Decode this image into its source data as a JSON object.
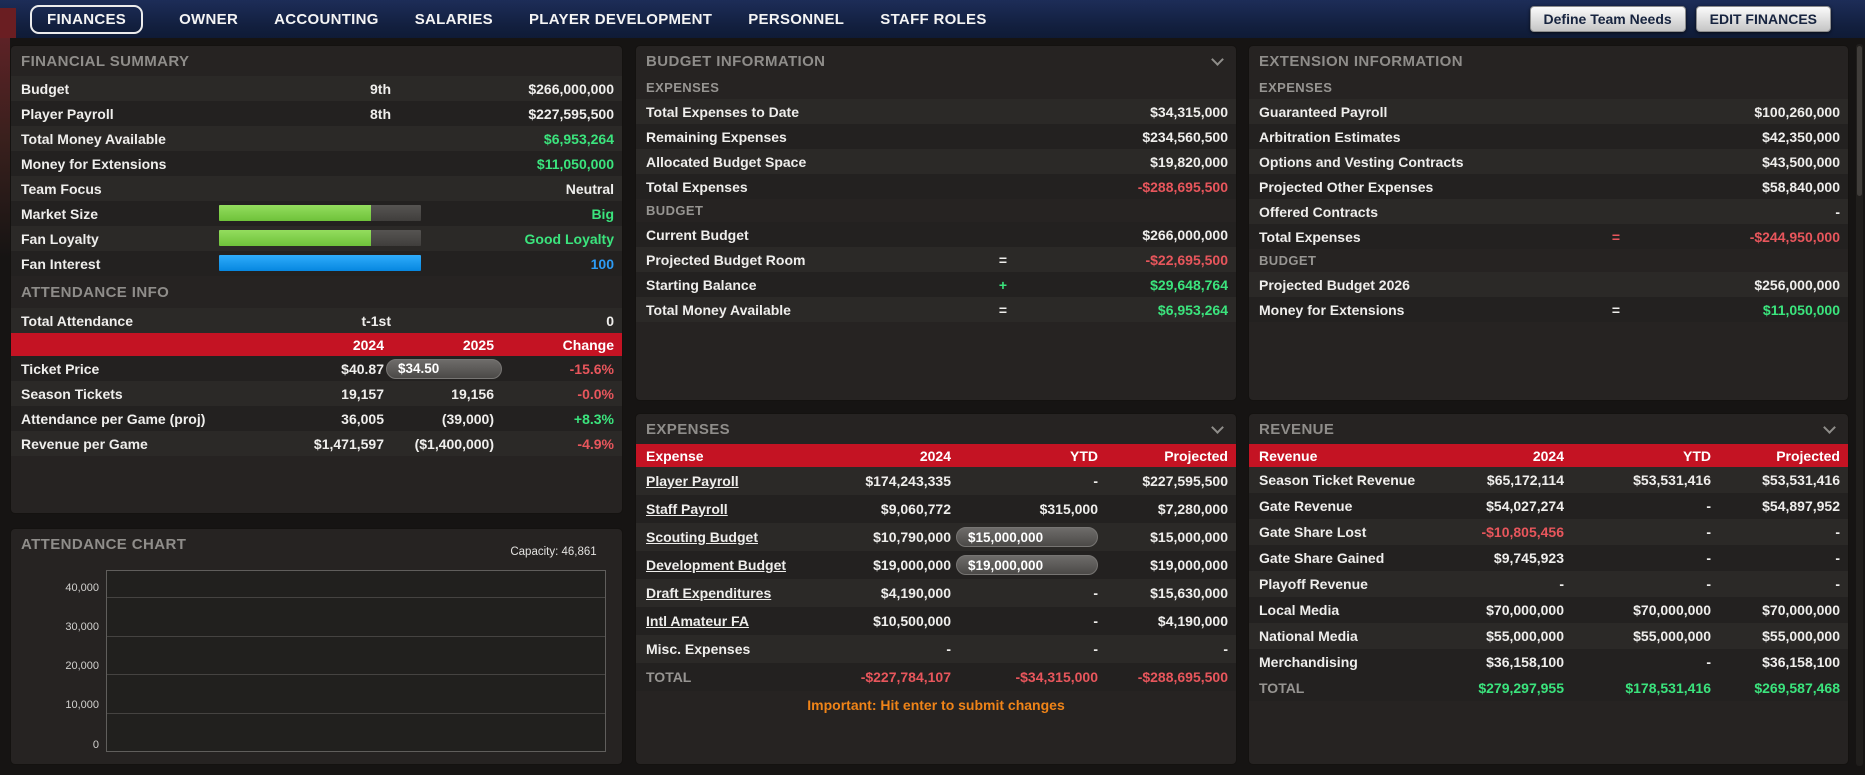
{
  "colors": {
    "accent_red": "#c41323",
    "positive_green": "#3be47d",
    "negative_red": "#e8565c",
    "info_blue": "#2d9bf5",
    "warning_orange": "#f08418",
    "bar_green": "#82d24b",
    "bar_blue": "#0d9cfa"
  },
  "nav": {
    "tabs": [
      {
        "label": "FINANCES",
        "selected": true
      },
      {
        "label": "OWNER",
        "selected": false
      },
      {
        "label": "ACCOUNTING",
        "selected": false
      },
      {
        "label": "SALARIES",
        "selected": false
      },
      {
        "label": "PLAYER DEVELOPMENT",
        "selected": false
      },
      {
        "label": "PERSONNEL",
        "selected": false
      },
      {
        "label": "STAFF ROLES",
        "selected": false
      }
    ],
    "buttons": [
      {
        "label": "Define Team Needs"
      },
      {
        "label": "EDIT FINANCES"
      }
    ]
  },
  "financial_summary": {
    "title": "FINANCIAL SUMMARY",
    "rows": [
      {
        "label": "Budget",
        "rank": "9th",
        "value": "$266,000,000"
      },
      {
        "label": "Player Payroll",
        "rank": "8th",
        "value": "$227,595,500"
      },
      {
        "label": "Total Money Available",
        "rank": "",
        "value": "$6,953,264"
      },
      {
        "label": "Money for Extensions",
        "rank": "",
        "value": "$11,050,000"
      },
      {
        "label": "Team Focus",
        "rank": "",
        "value": "Neutral"
      },
      {
        "label": "Market Size",
        "bar_pct": 75,
        "value": "Big"
      },
      {
        "label": "Fan Loyalty",
        "bar_pct": 75,
        "value": "Good Loyalty"
      },
      {
        "label": "Fan Interest",
        "bar_pct": 100,
        "value": "100"
      }
    ]
  },
  "attendance_info": {
    "title": "ATTENDANCE INFO",
    "total_row": {
      "label": "Total Attendance",
      "rank": "t-1st",
      "value": "0"
    },
    "columns": {
      "c1": "2024",
      "c2": "2025",
      "c3": "Change"
    },
    "rows": [
      {
        "label": "Ticket Price",
        "y2024": "$40.87",
        "y2025": "$34.50",
        "change": "-15.6%"
      },
      {
        "label": "Season Tickets",
        "y2024": "19,157",
        "y2025": "19,156",
        "change": "-0.0%"
      },
      {
        "label": "Attendance per Game (proj)",
        "y2024": "36,005",
        "y2025": "(39,000)",
        "change": "+8.3%"
      },
      {
        "label": "Revenue per Game",
        "y2024": "$1,471,597",
        "y2025": "($1,400,000)",
        "change": "-4.9%"
      }
    ]
  },
  "attendance_chart": {
    "title": "ATTENDANCE CHART",
    "capacity_label": "Capacity: 46,861",
    "chart_data": {
      "type": "line",
      "title": "ATTENDANCE CHART",
      "xlabel": "",
      "ylabel": "",
      "ylim": [
        0,
        46861
      ],
      "yticks": [
        "0",
        "10,000",
        "20,000",
        "30,000",
        "40,000"
      ],
      "capacity": 46861,
      "series": [],
      "grid": "horizontal",
      "note": "chart area empty - no attendance data plotted yet"
    }
  },
  "budget_information": {
    "title": "BUDGET INFORMATION",
    "expenses_subheader": "EXPENSES",
    "budget_subheader": "BUDGET",
    "expenses_rows": [
      {
        "label": "Total Expenses to Date",
        "op": "",
        "value": "$34,315,000"
      },
      {
        "label": "Remaining Expenses",
        "op": "",
        "value": "$234,560,500"
      },
      {
        "label": "Allocated Budget Space",
        "op": "",
        "value": "$19,820,000"
      },
      {
        "label": "Total Expenses",
        "op": "",
        "value": "-$288,695,500"
      }
    ],
    "budget_rows": [
      {
        "label": "Current Budget",
        "op": "",
        "value": "$266,000,000"
      },
      {
        "label": "Projected Budget Room",
        "op": "=",
        "value": "-$22,695,500"
      },
      {
        "label": "Starting Balance",
        "op": "+",
        "value": "$29,648,764"
      },
      {
        "label": "Total Money Available",
        "op": "=",
        "value": "$6,953,264"
      }
    ]
  },
  "expenses_table": {
    "title": "EXPENSES",
    "columns": [
      "Expense",
      "2024",
      "YTD",
      "Projected"
    ],
    "rows": [
      {
        "label": "Player Payroll",
        "y2024": "$174,243,335",
        "ytd": "-",
        "projected": "$227,595,500"
      },
      {
        "label": "Staff Payroll",
        "y2024": "$9,060,772",
        "ytd": "$315,000",
        "projected": "$7,280,000"
      },
      {
        "label": "Scouting Budget",
        "y2024": "$10,790,000",
        "ytd_input": "$15,000,000",
        "projected": "$15,000,000"
      },
      {
        "label": "Development Budget",
        "y2024": "$19,000,000",
        "ytd_input": "$19,000,000",
        "projected": "$19,000,000"
      },
      {
        "label": "Draft Expenditures",
        "y2024": "$4,190,000",
        "ytd": "-",
        "projected": "$15,630,000"
      },
      {
        "label": "Intl Amateur FA",
        "y2024": "$10,500,000",
        "ytd": "-",
        "projected": "$4,190,000"
      },
      {
        "label": "Misc. Expenses",
        "y2024": "-",
        "ytd": "-",
        "projected": "-"
      }
    ],
    "total_row": {
      "label": "TOTAL",
      "y2024": "-$227,784,107",
      "ytd": "-$34,315,000",
      "projected": "-$288,695,500"
    },
    "note": "Important: Hit enter to submit changes"
  },
  "extension_information": {
    "title": "EXTENSION INFORMATION",
    "expenses_subheader": "EXPENSES",
    "budget_subheader": "BUDGET",
    "expenses_rows": [
      {
        "label": "Guaranteed Payroll",
        "op": "",
        "value": "$100,260,000"
      },
      {
        "label": "Arbitration Estimates",
        "op": "",
        "value": "$42,350,000"
      },
      {
        "label": "Options and Vesting Contracts",
        "op": "",
        "value": "$43,500,000"
      },
      {
        "label": "Projected Other Expenses",
        "op": "",
        "value": "$58,840,000"
      },
      {
        "label": "Offered Contracts",
        "op": "",
        "value": "-"
      },
      {
        "label": "Total Expenses",
        "op": "=",
        "value": "-$244,950,000"
      }
    ],
    "budget_rows": [
      {
        "label": "Projected Budget 2026",
        "op": "",
        "value": "$256,000,000"
      },
      {
        "label": "Money for Extensions",
        "op": "=",
        "value": "$11,050,000"
      }
    ]
  },
  "revenue_table": {
    "title": "REVENUE",
    "columns": [
      "Revenue",
      "2024",
      "YTD",
      "Projected"
    ],
    "rows": [
      {
        "label": "Season Ticket Revenue",
        "y2024": "$65,172,114",
        "ytd": "$53,531,416",
        "projected": "$53,531,416"
      },
      {
        "label": "Gate Revenue",
        "y2024": "$54,027,274",
        "ytd": "-",
        "projected": "$54,897,952"
      },
      {
        "label": "Gate Share Lost",
        "y2024": "-$10,805,456",
        "ytd": "-",
        "projected": "-"
      },
      {
        "label": "Gate Share Gained",
        "y2024": "$9,745,923",
        "ytd": "-",
        "projected": "-"
      },
      {
        "label": "Playoff Revenue",
        "y2024": "-",
        "ytd": "-",
        "projected": "-"
      },
      {
        "label": "Local Media",
        "y2024": "$70,000,000",
        "ytd": "$70,000,000",
        "projected": "$70,000,000"
      },
      {
        "label": "National Media",
        "y2024": "$55,000,000",
        "ytd": "$55,000,000",
        "projected": "$55,000,000"
      },
      {
        "label": "Merchandising",
        "y2024": "$36,158,100",
        "ytd": "-",
        "projected": "$36,158,100"
      }
    ],
    "total_row": {
      "label": "TOTAL",
      "y2024": "$279,297,955",
      "ytd": "$178,531,416",
      "projected": "$269,587,468"
    }
  }
}
